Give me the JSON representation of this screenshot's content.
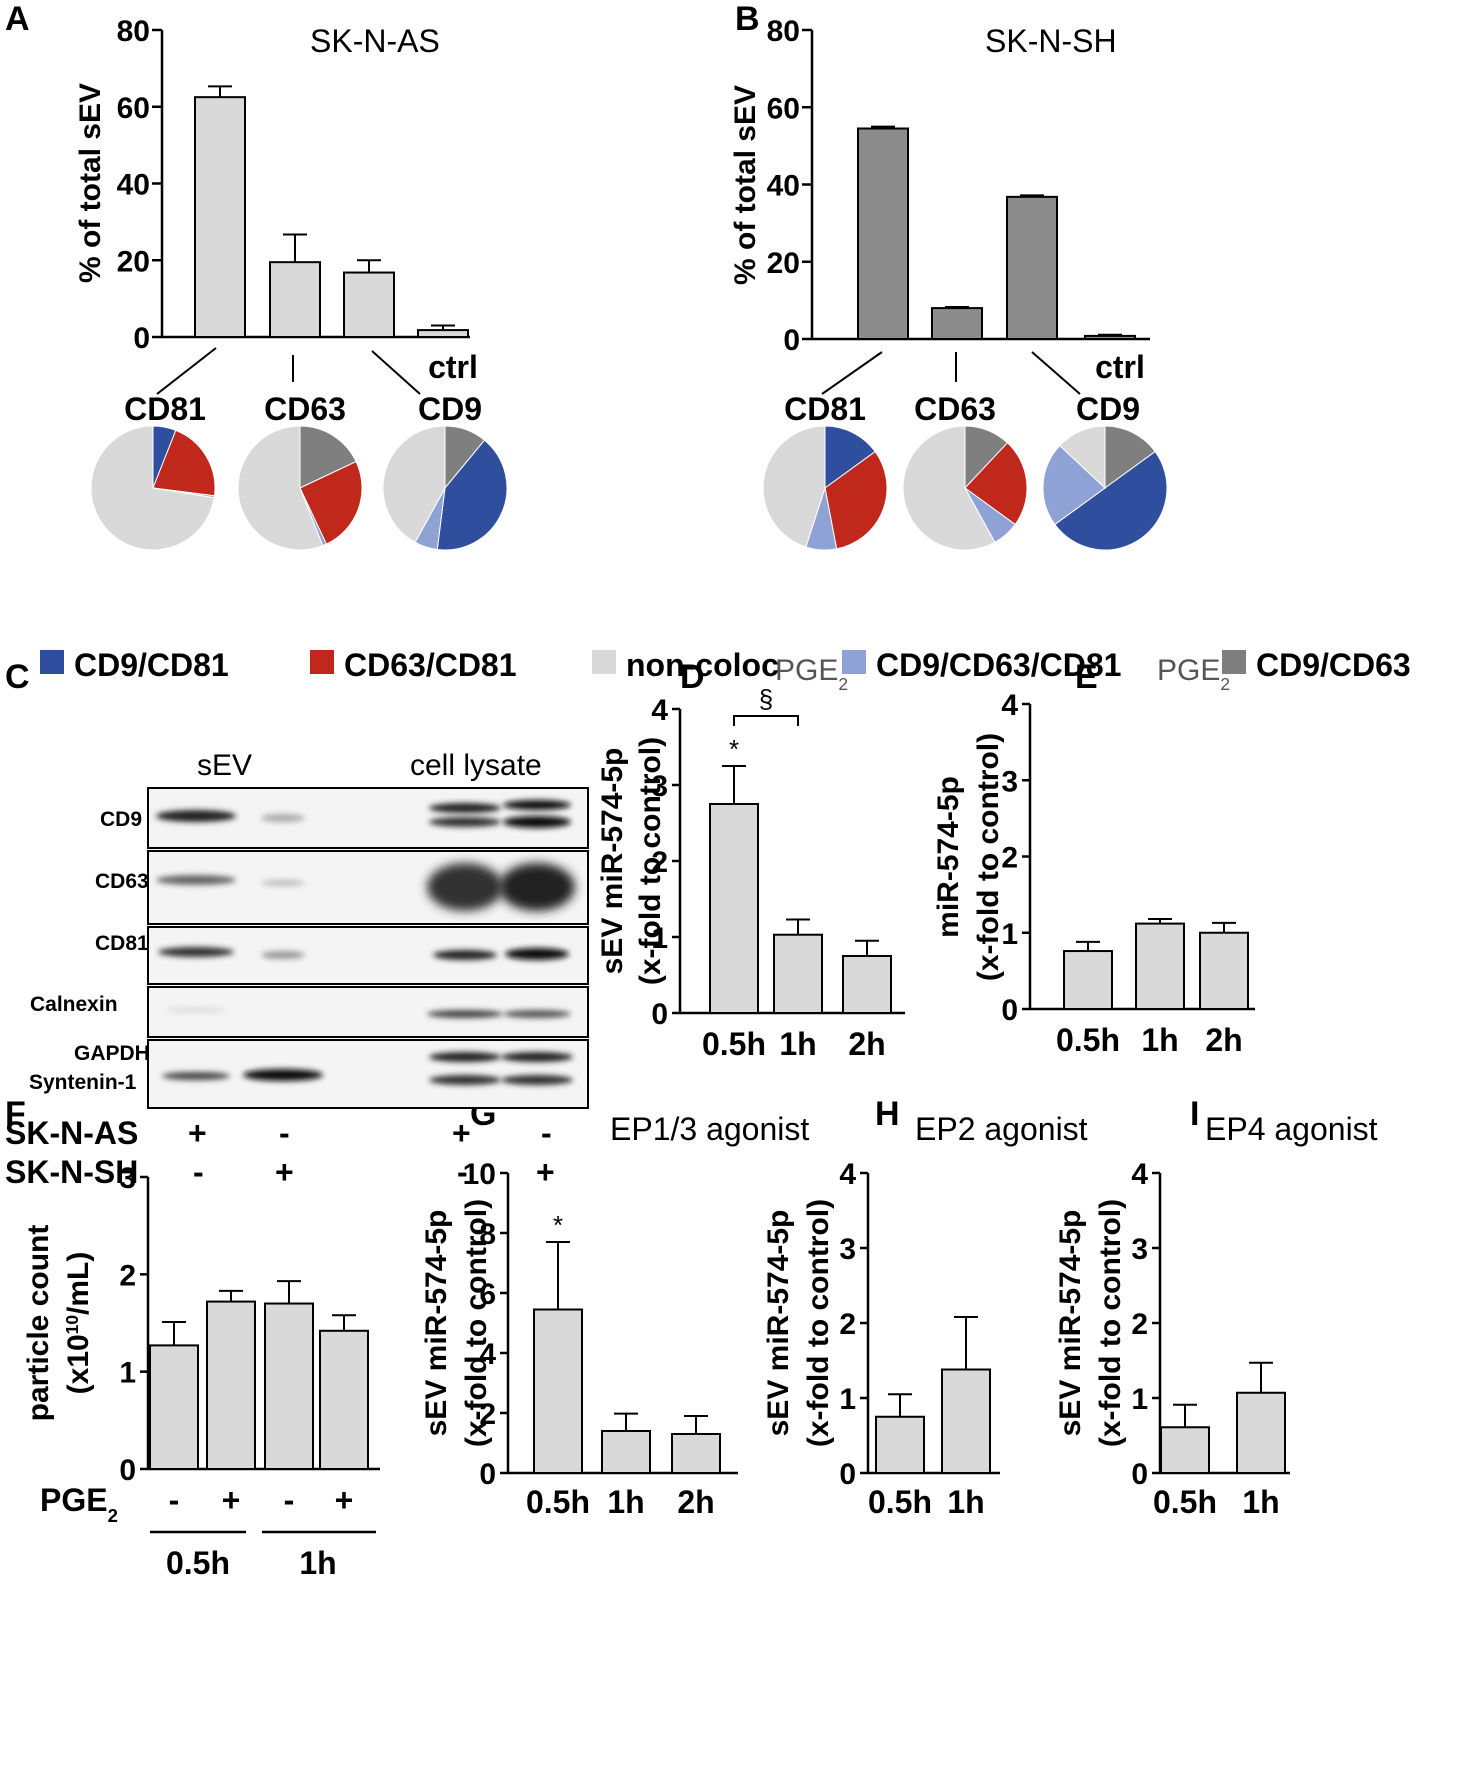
{
  "colors": {
    "light_bar": "#d9d9d9",
    "dark_bar": "#8c8c8c",
    "cd9_cd81": "#2f4f9e",
    "cd63_cd81": "#c0281c",
    "non_coloc": "#d9d9d9",
    "cd9_cd63_cd81": "#8ea2d6",
    "cd9_cd63": "#7f7f7f"
  },
  "legend": {
    "items": [
      {
        "label": "CD9/CD81",
        "color": "#2f4f9e"
      },
      {
        "label": "CD63/CD81",
        "color": "#c0281c"
      },
      {
        "label": "non-coloc",
        "color": "#d9d9d9"
      },
      {
        "label": "CD9/CD63/CD81",
        "color": "#8ea2d6"
      },
      {
        "label": "CD9/CD63",
        "color": "#7f7f7f"
      }
    ]
  },
  "westernblot": {
    "label": "C",
    "col_headers": [
      "sEV",
      "cell lysate"
    ],
    "bands": [
      "CD9",
      "CD63",
      "CD81",
      "Calnexin",
      "GAPDH",
      "Syntenin-1"
    ],
    "cell_lines": [
      {
        "name": "SK-N-AS",
        "signs": [
          "+",
          "-",
          "+",
          "-"
        ]
      },
      {
        "name": "SK-N-SH",
        "signs": [
          "-",
          "+",
          "-",
          "+"
        ]
      }
    ]
  },
  "panelF": {
    "group_labels": [
      "0.5h",
      "1h"
    ]
  },
  "chart_data": [
    {
      "panel": "A",
      "type": "bar",
      "title": "SK-N-AS",
      "ylabel": "% of total sEV",
      "ylim": [
        0,
        80
      ],
      "yticks": [
        "0",
        "20",
        "40",
        "60",
        "80"
      ],
      "categories": [
        "",
        "",
        "",
        "ctrl"
      ],
      "values": [
        62.5,
        19.5,
        16.8,
        1.8
      ],
      "errors": [
        2.8,
        7.2,
        3.2,
        1.2
      ],
      "bar_color": "#d9d9d9",
      "pies": [
        {
          "label": "CD81",
          "slices": [
            {
              "name": "CD9/CD81",
              "value": 6,
              "color": "#2f4f9e"
            },
            {
              "name": "CD63/CD81",
              "value": 21,
              "color": "#c0281c"
            },
            {
              "name": "CD9/CD63/CD81",
              "value": 0.5,
              "color": "#8ea2d6"
            },
            {
              "name": "non-coloc",
              "value": 72.5,
              "color": "#d9d9d9"
            }
          ]
        },
        {
          "label": "CD63",
          "slices": [
            {
              "name": "CD9/CD63",
              "value": 18,
              "color": "#7f7f7f"
            },
            {
              "name": "CD63/CD81",
              "value": 25,
              "color": "#c0281c"
            },
            {
              "name": "CD9/CD63/CD81",
              "value": 1,
              "color": "#8ea2d6"
            },
            {
              "name": "non-coloc",
              "value": 56,
              "color": "#d9d9d9"
            }
          ]
        },
        {
          "label": "CD9",
          "slices": [
            {
              "name": "CD9/CD63",
              "value": 11,
              "color": "#7f7f7f"
            },
            {
              "name": "CD9/CD81",
              "value": 41,
              "color": "#2f4f9e"
            },
            {
              "name": "CD9/CD63/CD81",
              "value": 6,
              "color": "#8ea2d6"
            },
            {
              "name": "non-coloc",
              "value": 42,
              "color": "#d9d9d9"
            }
          ]
        }
      ]
    },
    {
      "panel": "B",
      "type": "bar",
      "title": "SK-N-SH",
      "ylabel": "% of total sEV",
      "ylim": [
        0,
        80
      ],
      "yticks": [
        "0",
        "20",
        "40",
        "60",
        "80"
      ],
      "categories": [
        "",
        "",
        "",
        "ctrl"
      ],
      "values": [
        54.5,
        8.0,
        36.8,
        0.8
      ],
      "errors": [
        0.5,
        0.3,
        0.4,
        0.3
      ],
      "bar_color": "#8c8c8c",
      "pies": [
        {
          "label": "CD81",
          "slices": [
            {
              "name": "CD9/CD81",
              "value": 15,
              "color": "#2f4f9e"
            },
            {
              "name": "CD63/CD81",
              "value": 32,
              "color": "#c0281c"
            },
            {
              "name": "CD9/CD63/CD81",
              "value": 8,
              "color": "#8ea2d6"
            },
            {
              "name": "non-coloc",
              "value": 45,
              "color": "#d9d9d9"
            }
          ]
        },
        {
          "label": "CD63",
          "slices": [
            {
              "name": "CD9/CD63",
              "value": 12,
              "color": "#7f7f7f"
            },
            {
              "name": "CD63/CD81",
              "value": 23,
              "color": "#c0281c"
            },
            {
              "name": "CD9/CD63/CD81",
              "value": 7,
              "color": "#8ea2d6"
            },
            {
              "name": "non-coloc",
              "value": 58,
              "color": "#d9d9d9"
            }
          ]
        },
        {
          "label": "CD9",
          "slices": [
            {
              "name": "CD9/CD63",
              "value": 15,
              "color": "#7f7f7f"
            },
            {
              "name": "CD9/CD81",
              "value": 50,
              "color": "#2f4f9e"
            },
            {
              "name": "CD9/CD63/CD81",
              "value": 22,
              "color": "#8ea2d6"
            },
            {
              "name": "non-coloc",
              "value": 13,
              "color": "#d9d9d9"
            }
          ]
        }
      ]
    },
    {
      "panel": "D",
      "type": "bar",
      "title": "PGE",
      "title_sub": "2",
      "ylabel": [
        "sEV miR-574-5p",
        "(x-fold to control)"
      ],
      "ylim": [
        0,
        4
      ],
      "yticks": [
        "0",
        "1",
        "2",
        "3",
        "4"
      ],
      "categories": [
        "0.5h",
        "1h",
        "2h"
      ],
      "values": [
        2.75,
        1.03,
        0.75
      ],
      "errors": [
        0.5,
        0.2,
        0.2
      ],
      "annotations": [
        {
          "text": "*",
          "bar": 0
        },
        {
          "text": "§",
          "bracket": [
            0,
            1
          ]
        }
      ]
    },
    {
      "panel": "E",
      "type": "bar",
      "title": "PGE",
      "title_sub": "2",
      "ylabel": [
        "miR-574-5p",
        "(x-fold to control)"
      ],
      "ylim": [
        0,
        4
      ],
      "yticks": [
        "0",
        "1",
        "2",
        "3",
        "4"
      ],
      "categories": [
        "0.5h",
        "1h",
        "2h"
      ],
      "values": [
        0.76,
        1.12,
        1.0
      ],
      "errors": [
        0.12,
        0.06,
        0.13
      ]
    },
    {
      "panel": "F",
      "type": "bar",
      "title": "",
      "ylabel": [
        "particle count",
        "(x10",
        "10",
        "/mL)"
      ],
      "ylim": [
        0,
        3
      ],
      "yticks": [
        "0",
        "1",
        "2",
        "3"
      ],
      "xlabel": "PGE",
      "xlabel_sub": "2",
      "categories": [
        "-",
        "+",
        "-",
        "+"
      ],
      "values": [
        1.27,
        1.72,
        1.7,
        1.42
      ],
      "errors": [
        0.24,
        0.11,
        0.23,
        0.16
      ]
    },
    {
      "panel": "G",
      "type": "bar",
      "title": "EP1/3 agonist",
      "ylabel": [
        "sEV miR-574-5p",
        "(x-fold to control)"
      ],
      "ylim": [
        0,
        10
      ],
      "yticks": [
        "0",
        "2",
        "4",
        "6",
        "8",
        "10"
      ],
      "categories": [
        "0.5h",
        "1h",
        "2h"
      ],
      "values": [
        5.45,
        1.4,
        1.3
      ],
      "errors": [
        2.25,
        0.58,
        0.6
      ],
      "annotations": [
        {
          "text": "*",
          "bar": 0
        }
      ]
    },
    {
      "panel": "H",
      "type": "bar",
      "title": "EP2 agonist",
      "ylabel": [
        "sEV miR-574-5p",
        "(x-fold to control)"
      ],
      "ylim": [
        0,
        4
      ],
      "yticks": [
        "0",
        "1",
        "2",
        "3",
        "4"
      ],
      "categories": [
        "0.5h",
        "1h"
      ],
      "values": [
        0.75,
        1.38
      ],
      "errors": [
        0.3,
        0.7
      ]
    },
    {
      "panel": "I",
      "type": "bar",
      "title": "EP4 agonist",
      "ylabel": [
        "sEV miR-574-5p",
        "(x-fold to control)"
      ],
      "ylim": [
        0,
        4
      ],
      "yticks": [
        "0",
        "1",
        "2",
        "3",
        "4"
      ],
      "categories": [
        "0.5h",
        "1h"
      ],
      "values": [
        0.61,
        1.07
      ],
      "errors": [
        0.3,
        0.4
      ]
    }
  ]
}
